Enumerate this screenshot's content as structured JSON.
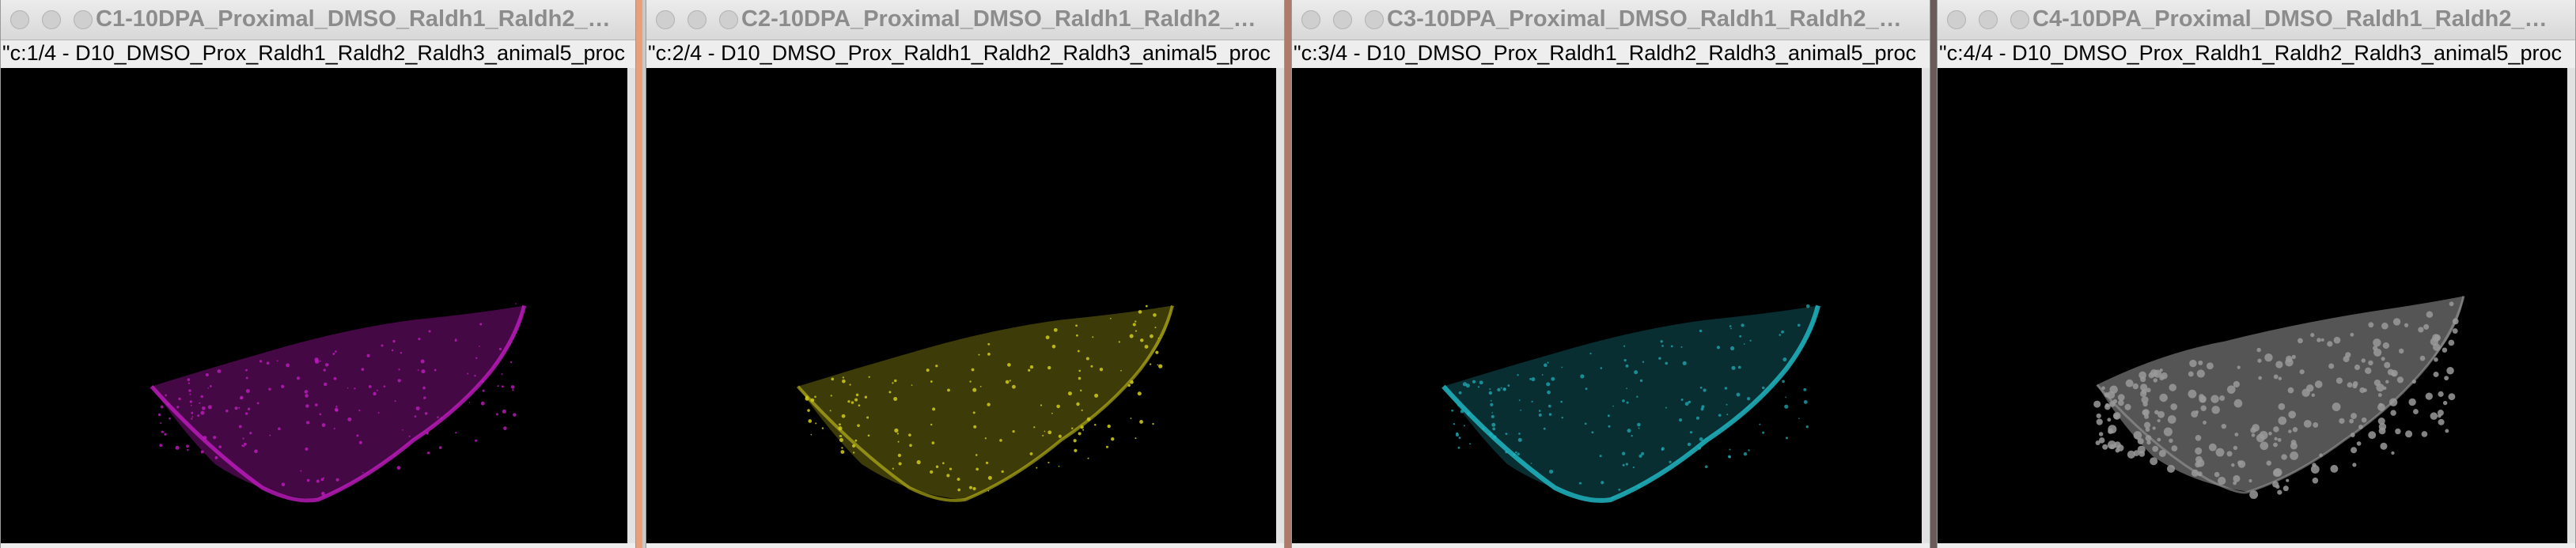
{
  "windows": [
    {
      "title": "C1-10DPA_Proximal_DMSO_Raldh1_Raldh2_Rald...",
      "subtitle": "\"c:1/4 - D10_DMSO_Prox_Raldh1_Raldh2_Raldh3_animal5_proc",
      "channel_color": "#c21bc2"
    },
    {
      "title": "C2-10DPA_Proximal_DMSO_Raldh1_Raldh2_Rald...",
      "subtitle": "\"c:2/4 - D10_DMSO_Prox_Raldh1_Raldh2_Raldh3_animal5_proc",
      "channel_color": "#c9c41a"
    },
    {
      "title": "C3-10DPA_Proximal_DMSO_Raldh1_Raldh2_Rald...",
      "subtitle": "\"c:3/4 - D10_DMSO_Prox_Raldh1_Raldh2_Raldh3_animal5_proc",
      "channel_color": "#1fb6c2"
    },
    {
      "title": "C4-10DPA_Proximal_DMSO_Raldh1_Raldh2_Rald...",
      "subtitle": "\"c:4/4 - D10_DMSO_Prox_Raldh1_Raldh2_Raldh3_animal5_proc",
      "channel_color": "#9a9a9a"
    }
  ]
}
